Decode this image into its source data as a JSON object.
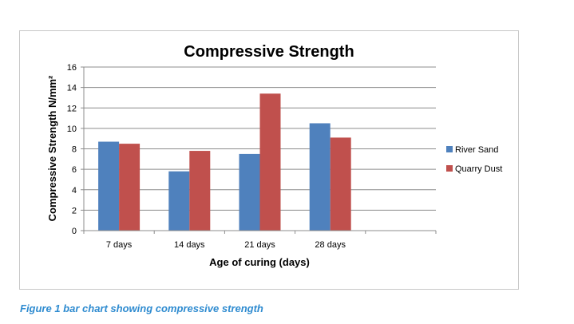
{
  "chart_data": {
    "type": "bar",
    "title": "Compressive Strength",
    "xlabel": "Age of curing (days)",
    "ylabel": "Compressive Strength N/mm²",
    "categories": [
      "7 days",
      "14 days",
      "21 days",
      "28 days",
      ""
    ],
    "series": [
      {
        "name": "River Sand",
        "color": "#4f81bd",
        "values": [
          8.7,
          5.8,
          7.5,
          10.5,
          null
        ]
      },
      {
        "name": "Quarry Dust",
        "color": "#c0504d",
        "values": [
          8.5,
          7.8,
          13.4,
          9.1,
          null
        ]
      }
    ],
    "ylim": [
      0,
      16
    ],
    "yticks": [
      0,
      2,
      4,
      6,
      8,
      10,
      12,
      14,
      16
    ],
    "grid": true,
    "legend": "right"
  },
  "caption": "Figure 1 bar chart showing compressive strength"
}
